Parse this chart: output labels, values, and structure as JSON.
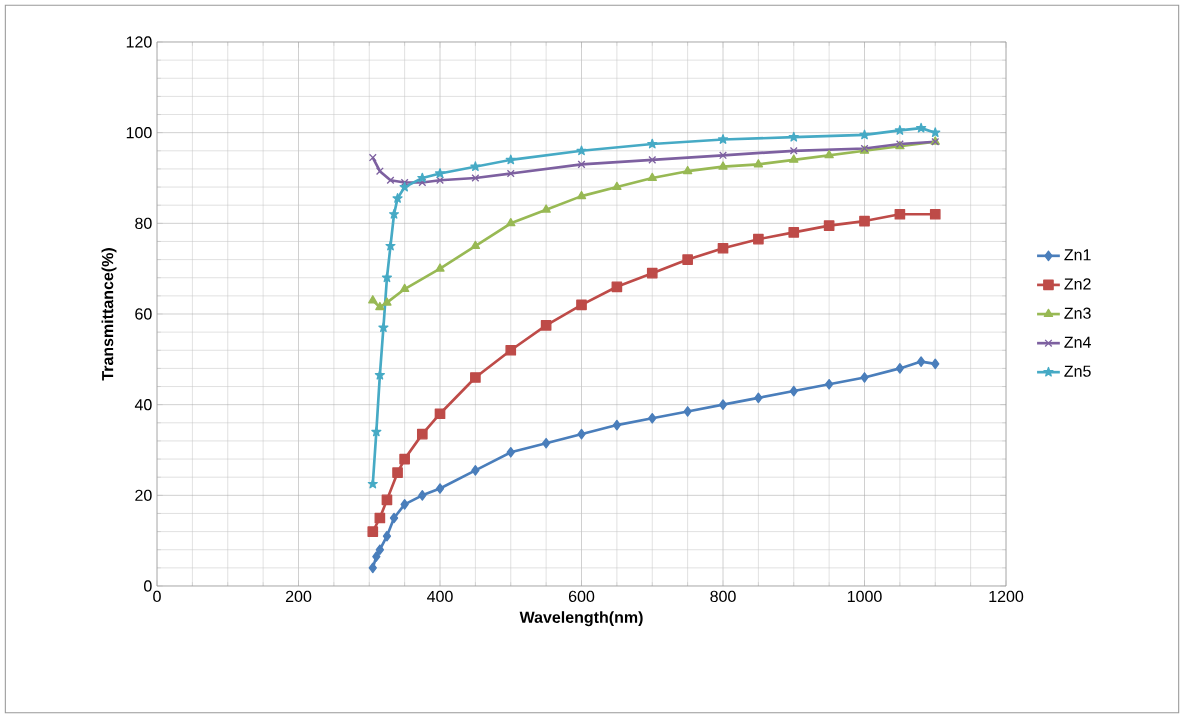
{
  "chart_data": {
    "type": "line",
    "xlabel": "Wavelength(nm)",
    "ylabel": "Transmittance(%)",
    "xlim": [
      0,
      1200
    ],
    "ylim": [
      0,
      120
    ],
    "xticks": [
      0,
      200,
      400,
      600,
      800,
      1000,
      1200
    ],
    "yticks": [
      0,
      20,
      40,
      60,
      80,
      100,
      120
    ],
    "grid": true,
    "legend": "right",
    "line_style": "solid",
    "series": [
      {
        "name": "Zn1",
        "color": "#4a7ebb",
        "marker": "diamond",
        "x": [
          305,
          310,
          315,
          325,
          335,
          350,
          375,
          400,
          450,
          500,
          550,
          600,
          650,
          700,
          750,
          800,
          850,
          900,
          950,
          1000,
          1050,
          1080,
          1100
        ],
        "values": [
          4,
          6.5,
          8,
          11,
          15,
          18,
          20,
          21.5,
          25.5,
          29.5,
          31.5,
          33.5,
          35.5,
          37,
          38.5,
          40,
          41.5,
          43,
          44.5,
          46,
          48,
          49.5,
          49
        ]
      },
      {
        "name": "Zn2",
        "color": "#be4b48",
        "marker": "square",
        "x": [
          305,
          315,
          325,
          340,
          350,
          375,
          400,
          450,
          500,
          550,
          600,
          650,
          700,
          750,
          800,
          850,
          900,
          950,
          1000,
          1050,
          1100
        ],
        "values": [
          12,
          15,
          19,
          25,
          28,
          33.5,
          38,
          46,
          52,
          57.5,
          62,
          66,
          69,
          72,
          74.5,
          76.5,
          78,
          79.5,
          80.5,
          82,
          82
        ]
      },
      {
        "name": "Zn3",
        "color": "#98b954",
        "marker": "triangle",
        "x": [
          305,
          315,
          325,
          350,
          400,
          450,
          500,
          550,
          600,
          650,
          700,
          750,
          800,
          850,
          900,
          950,
          1000,
          1050,
          1100
        ],
        "values": [
          63,
          61.5,
          62.5,
          65.5,
          70,
          75,
          80,
          83,
          86,
          88,
          90,
          91.5,
          92.5,
          93,
          94,
          95,
          96,
          97,
          98
        ]
      },
      {
        "name": "Zn4",
        "color": "#7d60a0",
        "marker": "cross",
        "x": [
          305,
          315,
          330,
          350,
          375,
          400,
          450,
          500,
          600,
          700,
          800,
          900,
          1000,
          1050,
          1100
        ],
        "values": [
          94.5,
          91.5,
          89.5,
          89,
          89,
          89.5,
          90,
          91,
          93,
          94,
          95,
          96,
          96.5,
          97.5,
          98
        ]
      },
      {
        "name": "Zn5",
        "color": "#46aac5",
        "marker": "star",
        "x": [
          305,
          310,
          315,
          320,
          325,
          330,
          335,
          340,
          350,
          375,
          400,
          450,
          500,
          600,
          700,
          800,
          900,
          1000,
          1050,
          1080,
          1100
        ],
        "values": [
          22.5,
          34,
          46.5,
          57,
          68,
          75,
          82,
          85.5,
          88,
          90,
          91,
          92.5,
          94,
          96,
          97.5,
          98.5,
          99,
          99.5,
          100.5,
          101,
          100
        ]
      }
    ]
  }
}
